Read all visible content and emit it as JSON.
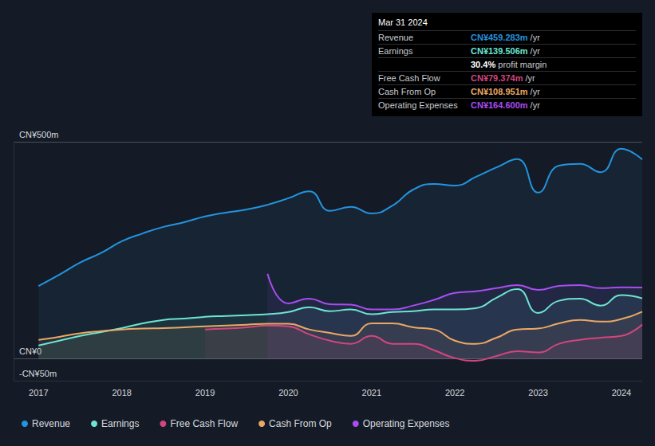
{
  "chart_data": {
    "type": "line",
    "x": [
      2017,
      2017.25,
      2017.5,
      2017.75,
      2018,
      2018.25,
      2018.5,
      2018.75,
      2019,
      2019.25,
      2019.5,
      2019.75,
      2020,
      2020.25,
      2020.5,
      2020.75,
      2021,
      2021.25,
      2021.5,
      2021.75,
      2022,
      2022.25,
      2022.5,
      2022.75,
      2023,
      2023.25,
      2023.5,
      2023.75,
      2024,
      2024.25
    ],
    "series": [
      {
        "name": "Revenue",
        "color": "#2394df",
        "values": [
          168,
          194,
          222,
          244,
          271,
          289,
          304,
          315,
          328,
          337,
          344,
          355,
          370,
          386,
          341,
          350,
          335,
          353,
          390,
          403,
          399,
          419,
          441,
          460,
          383,
          445,
          449,
          430,
          484,
          459.283
        ]
      },
      {
        "name": "Earnings",
        "color": "#6ce5d2",
        "values": [
          31,
          42,
          53,
          62,
          71,
          82,
          90,
          93,
          97,
          99,
          101,
          103,
          108,
          119,
          110,
          114,
          103,
          108,
          110,
          114,
          114,
          117,
          141,
          161,
          106,
          134,
          139,
          123,
          147,
          139.506
        ]
      },
      {
        "name": "Free Cash Flow",
        "color": "#d2457f",
        "values": [
          null,
          null,
          null,
          null,
          null,
          null,
          null,
          null,
          68,
          70,
          73,
          77,
          75,
          57,
          42,
          35,
          53,
          35,
          35,
          20,
          2,
          -4,
          7,
          18,
          15,
          35,
          44,
          49,
          53,
          79.374
        ]
      },
      {
        "name": "Cash From Op",
        "color": "#eba863",
        "values": [
          44,
          51,
          59,
          64,
          68,
          70,
          71,
          73,
          75,
          77,
          79,
          81,
          81,
          68,
          60,
          53,
          82,
          82,
          73,
          68,
          42,
          35,
          49,
          68,
          70,
          82,
          90,
          86,
          92,
          108.951
        ]
      },
      {
        "name": "Operating Expenses",
        "color": "#a84df0",
        "values": [
          null,
          null,
          null,
          null,
          null,
          null,
          null,
          null,
          null,
          null,
          null,
          196,
          128,
          139,
          126,
          125,
          114,
          114,
          123,
          136,
          152,
          156,
          163,
          170,
          159,
          168,
          170,
          163,
          165,
          164.6
        ]
      }
    ],
    "xlim": [
      2016.7,
      2024.25
    ],
    "xticks": [
      2017,
      2018,
      2019,
      2020,
      2021,
      2022,
      2023,
      2024
    ],
    "ylim": [
      -50,
      500
    ],
    "yticks": [
      {
        "value": -50,
        "label": "-CN¥50m"
      },
      {
        "value": 0,
        "label": "CN¥0"
      },
      {
        "value": 500,
        "label": "CN¥500m"
      }
    ],
    "grid": true,
    "legend": "bottom-left",
    "annotations": [
      {
        "title": "Mar 31 2024",
        "rows": [
          {
            "label": "Revenue",
            "text": "CN¥459.283m",
            "suffix": "/yr"
          },
          {
            "label": "Earnings",
            "text": "CN¥139.506m",
            "suffix": "/yr"
          },
          {
            "text": "30.4%",
            "suffix": "profit margin"
          },
          {
            "label": "Free Cash Flow",
            "text": "CN¥79.374m",
            "suffix": "/yr"
          },
          {
            "label": "Cash From Op",
            "text": "CN¥108.951m",
            "suffix": "/yr"
          },
          {
            "label": "Operating Expenses",
            "text": "CN¥164.600m",
            "suffix": "/yr"
          }
        ]
      }
    ]
  }
}
